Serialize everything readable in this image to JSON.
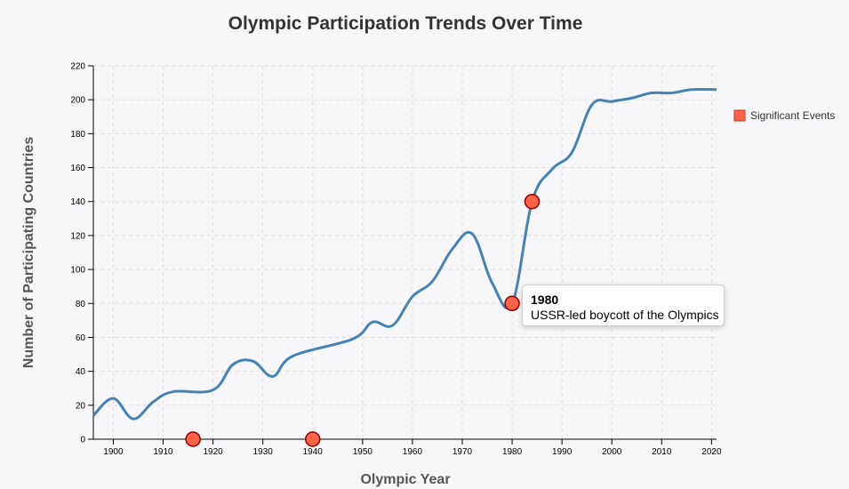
{
  "chart_data": {
    "type": "line",
    "title": "Olympic Participation Trends Over Time",
    "xlabel": "Olympic Year",
    "ylabel": "Number of Participating Countries",
    "xlim": [
      1896,
      2021
    ],
    "ylim": [
      0,
      220
    ],
    "xticks": [
      1900,
      1910,
      1920,
      1930,
      1940,
      1950,
      1960,
      1970,
      1980,
      1990,
      2000,
      2010,
      2020
    ],
    "yticks": [
      0,
      20,
      40,
      60,
      80,
      100,
      120,
      140,
      160,
      180,
      200,
      220
    ],
    "grid": true,
    "line_color": "#4682b4",
    "series": [
      {
        "x": [
          1896,
          1900,
          1904,
          1908,
          1912,
          1920,
          1924,
          1928,
          1932,
          1936,
          1948,
          1952,
          1956,
          1960,
          1964,
          1968,
          1972,
          1976,
          1980,
          1984,
          1988,
          1992,
          1996,
          2000,
          2004,
          2008,
          2012,
          2016,
          2021
        ],
        "y": [
          14,
          24,
          12,
          22,
          28,
          29,
          44,
          46,
          37,
          49,
          59,
          69,
          67,
          84,
          93,
          112,
          121,
          92,
          80,
          140,
          159,
          169,
          197,
          199,
          201,
          204,
          204,
          206,
          206
        ]
      }
    ],
    "events": [
      {
        "year": 1916,
        "value": 0
      },
      {
        "year": 1940,
        "value": 0
      },
      {
        "year": 1980,
        "value": 80
      },
      {
        "year": 1984,
        "value": 140
      }
    ],
    "event_color": "#ff6347",
    "legend": {
      "label": "Significant Events",
      "placement": "right"
    },
    "tooltip": {
      "year": "1980",
      "text": "USSR-led boycott of the Olympics"
    }
  }
}
